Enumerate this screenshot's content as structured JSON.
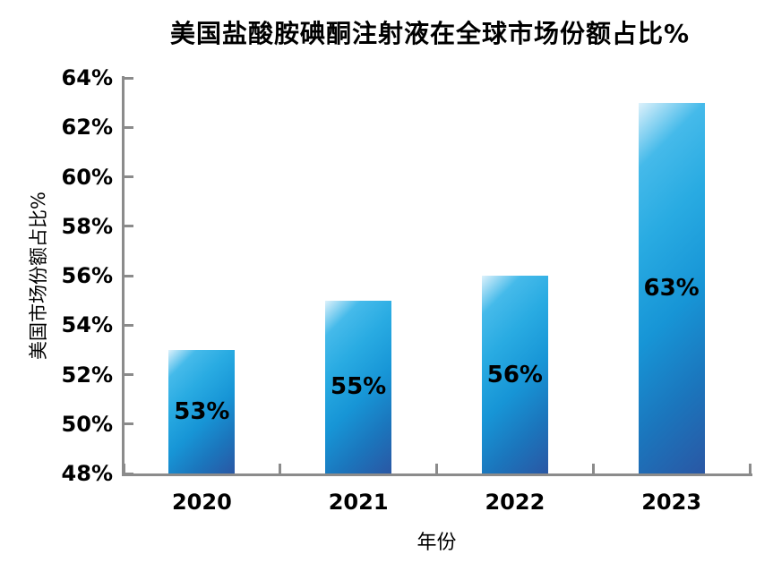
{
  "chart_data": {
    "type": "bar",
    "title": "美国盐酸胺碘酮注射液在全球市场份额占比%",
    "xlabel": "年份",
    "ylabel": "美国市场份额占比%",
    "categories": [
      "2020",
      "2021",
      "2022",
      "2023"
    ],
    "values": [
      53,
      55,
      56,
      63
    ],
    "bar_labels": [
      "53%",
      "55%",
      "56%",
      "63%"
    ],
    "bar_label_position": "center-inside",
    "ylim": [
      48,
      64
    ],
    "ytick_step": 2,
    "ytick_labels": [
      "48%",
      "50%",
      "52%",
      "54%",
      "56%",
      "58%",
      "60%",
      "62%",
      "64%"
    ],
    "grid": false,
    "legend_position": "none"
  },
  "colors": {
    "background": "#ffffff",
    "axis": "#8b8b8b",
    "text": "#000000",
    "bar_highlight": "#ddf1fb",
    "bar_light": "#45baea",
    "bar_azure": "#29abe2",
    "bar_mid": "#1795d6",
    "bar_dark": "#1b75bc",
    "bar_deep": "#2a57a4"
  }
}
